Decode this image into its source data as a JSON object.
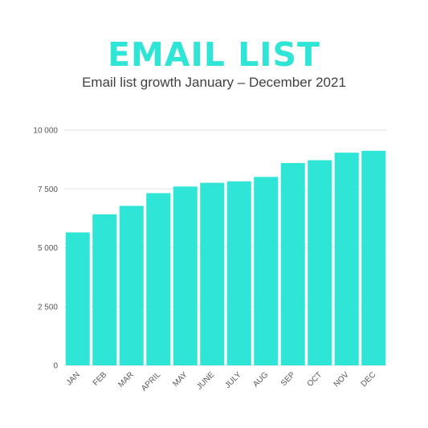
{
  "title": "EMAIL LIST",
  "subtitle": "Email list growth January – December 2021",
  "colors": {
    "bar": "#2ee5d6",
    "title": "#2ee5d6",
    "gridline": "#e3e3e3",
    "axis_text": "#555555"
  },
  "chart_data": {
    "type": "bar",
    "title": "EMAIL LIST",
    "subtitle": "Email list growth January – December 2021",
    "xlabel": "",
    "ylabel": "",
    "categories": [
      "JAN",
      "FEB",
      "MAR",
      "APRIL",
      "MAY",
      "JUNE",
      "JULY",
      "AUG",
      "SEP",
      "OCT",
      "NOV",
      "DEC"
    ],
    "values": [
      5650,
      6420,
      6780,
      7320,
      7600,
      7760,
      7820,
      8010,
      8600,
      8720,
      9040,
      9120
    ],
    "ylim": [
      0,
      10000
    ],
    "yticks": [
      0,
      2500,
      5000,
      7500,
      10000
    ],
    "ytick_labels": [
      "0",
      "2 500",
      "5 000",
      "7 500",
      "10 000"
    ],
    "grid": true,
    "legend": "none"
  }
}
